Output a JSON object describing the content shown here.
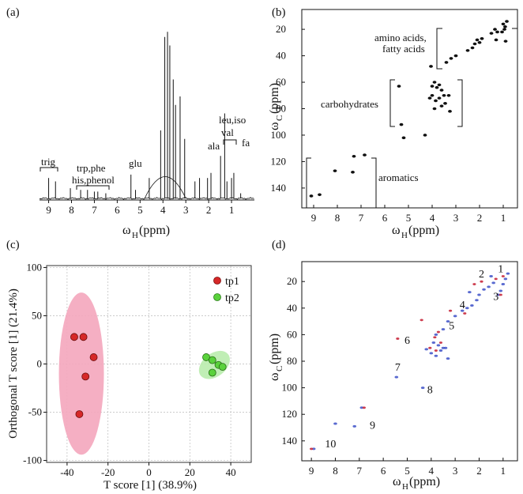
{
  "colors": {
    "spectrum": "#111111",
    "tp1_point": "#d62828",
    "tp1_ellipse": "#f4a6bd",
    "tp2_point": "#5ad23c",
    "tp2_ellipse": "#b9ecad",
    "grid": "#bbbbbb",
    "overlay_red": "#c8283c",
    "overlay_blue": "#3c50c8"
  },
  "chart_data": [
    {
      "panel_label": "(a)",
      "type": "line",
      "xlabel_main": "ω",
      "xlabel_sub": "H",
      "xlabel_unit": "(ppm)",
      "x_ticks": [
        9,
        8,
        7,
        6,
        5,
        4,
        3,
        2,
        1
      ],
      "xlim": [
        9.4,
        0.0
      ],
      "grid": false,
      "peaks": [
        {
          "x": 9.0,
          "h": 0.12
        },
        {
          "x": 8.7,
          "h": 0.1
        },
        {
          "x": 8.05,
          "h": 0.06
        },
        {
          "x": 7.6,
          "h": 0.05
        },
        {
          "x": 7.3,
          "h": 0.05
        },
        {
          "x": 7.0,
          "h": 0.04
        },
        {
          "x": 6.85,
          "h": 0.04
        },
        {
          "x": 6.5,
          "h": 0.03
        },
        {
          "x": 5.4,
          "h": 0.14
        },
        {
          "x": 5.2,
          "h": 0.05
        },
        {
          "x": 4.6,
          "h": 0.12
        },
        {
          "x": 4.1,
          "h": 0.4
        },
        {
          "x": 3.92,
          "h": 0.95
        },
        {
          "x": 3.8,
          "h": 0.98
        },
        {
          "x": 3.7,
          "h": 0.9
        },
        {
          "x": 3.55,
          "h": 0.7
        },
        {
          "x": 3.45,
          "h": 0.55
        },
        {
          "x": 3.25,
          "h": 0.6
        },
        {
          "x": 3.05,
          "h": 0.35
        },
        {
          "x": 2.6,
          "h": 0.1
        },
        {
          "x": 2.4,
          "h": 0.12
        },
        {
          "x": 2.05,
          "h": 0.12
        },
        {
          "x": 1.9,
          "h": 0.15
        },
        {
          "x": 1.48,
          "h": 0.25
        },
        {
          "x": 1.3,
          "h": 0.5
        },
        {
          "x": 1.2,
          "h": 0.1
        },
        {
          "x": 1.0,
          "h": 0.12
        },
        {
          "x": 0.9,
          "h": 0.15
        },
        {
          "x": 0.6,
          "h": 0.03
        }
      ],
      "annotations": [
        {
          "text": "trig",
          "x": 8.95
        },
        {
          "text": "trp,phe",
          "x": 7.3
        },
        {
          "text": "his,phenol",
          "x": 7.25
        },
        {
          "text": "glu",
          "x": 5.3
        },
        {
          "text": "ala",
          "x": 1.95
        },
        {
          "text": "leu,iso",
          "x": 1.1
        },
        {
          "text": "val",
          "x": 1.2
        },
        {
          "text": "fa",
          "x": 0.9
        }
      ]
    },
    {
      "panel_label": "(b)",
      "type": "scatter",
      "xlabel_main": "ω",
      "xlabel_sub": "H",
      "xlabel_unit": "(ppm)",
      "ylabel_main": "ω",
      "ylabel_sub": "C",
      "ylabel_unit": "(ppm)",
      "x_ticks": [
        9,
        8,
        7,
        6,
        5,
        4,
        3,
        2,
        1
      ],
      "y_ticks": [
        20,
        40,
        60,
        80,
        100,
        120,
        140
      ],
      "xlim": [
        9.5,
        0.4
      ],
      "ylim": [
        5,
        155
      ],
      "grid": false,
      "points": [
        [
          1.0,
          16
        ],
        [
          0.92,
          18
        ],
        [
          0.95,
          20
        ],
        [
          0.85,
          14
        ],
        [
          1.05,
          22
        ],
        [
          1.25,
          22
        ],
        [
          1.35,
          20
        ],
        [
          1.5,
          23
        ],
        [
          1.9,
          27
        ],
        [
          2.0,
          30
        ],
        [
          2.1,
          28
        ],
        [
          2.3,
          34
        ],
        [
          2.5,
          36
        ],
        [
          2.2,
          31
        ],
        [
          1.3,
          28
        ],
        [
          0.9,
          29
        ],
        [
          3.0,
          40
        ],
        [
          3.2,
          42
        ],
        [
          3.4,
          45
        ],
        [
          4.05,
          48
        ],
        [
          3.7,
          62
        ],
        [
          3.8,
          64
        ],
        [
          3.9,
          60
        ],
        [
          4.0,
          63
        ],
        [
          3.6,
          66
        ],
        [
          3.5,
          70
        ],
        [
          3.7,
          72
        ],
        [
          3.85,
          74
        ],
        [
          4.0,
          70
        ],
        [
          4.1,
          72
        ],
        [
          3.3,
          70
        ],
        [
          3.45,
          76
        ],
        [
          3.6,
          78
        ],
        [
          3.9,
          80
        ],
        [
          3.25,
          82
        ],
        [
          5.4,
          63
        ],
        [
          4.3,
          100
        ],
        [
          5.3,
          92
        ],
        [
          5.2,
          102
        ],
        [
          6.85,
          115
        ],
        [
          7.3,
          116
        ],
        [
          7.35,
          128
        ],
        [
          8.1,
          127
        ],
        [
          8.75,
          145
        ],
        [
          9.1,
          146
        ]
      ],
      "annotations": [
        {
          "text": "amino acids,"
        },
        {
          "text": "fatty acids"
        },
        {
          "text": "carbohydrates"
        },
        {
          "text": "aromatics"
        }
      ]
    },
    {
      "panel_label": "(c)",
      "type": "scatter",
      "xlabel": "T score [1] (38.9%)",
      "ylabel": "Orthogonal T score [1] (21.4%)",
      "x_ticks": [
        -40,
        -20,
        0,
        20,
        40
      ],
      "y_ticks": [
        100,
        50,
        0,
        -50,
        -100
      ],
      "xlim": [
        -50,
        50
      ],
      "ylim": [
        -102,
        102
      ],
      "grid": true,
      "legend_position": "top-right",
      "series": [
        {
          "name": "tp1",
          "points": [
            [
              -36.5,
              28
            ],
            [
              -32,
              28
            ],
            [
              -27,
              7
            ],
            [
              -31,
              -13
            ],
            [
              -34,
              -52
            ]
          ],
          "ellipse": {
            "cx": -33,
            "cy": -10,
            "rx": 11,
            "ry": 84
          }
        },
        {
          "name": "tp2",
          "points": [
            [
              28,
              7
            ],
            [
              31,
              4
            ],
            [
              34,
              -1
            ],
            [
              36,
              -3
            ],
            [
              31,
              -9
            ]
          ],
          "ellipse": {
            "cx": 32,
            "cy": -1,
            "rx": 8.5,
            "ry": 12,
            "angle": -38
          }
        }
      ]
    },
    {
      "panel_label": "(d)",
      "type": "scatter",
      "xlabel_main": "ω",
      "xlabel_sub": "H",
      "xlabel_unit": "(ppm)",
      "ylabel_main": "ω",
      "ylabel_sub": "C",
      "ylabel_unit": "(ppm)",
      "x_ticks": [
        9,
        8,
        7,
        6,
        5,
        4,
        3,
        2,
        1
      ],
      "y_ticks": [
        20,
        40,
        60,
        80,
        100,
        120,
        140
      ],
      "xlim": [
        9.4,
        0.4
      ],
      "ylim": [
        5,
        155
      ],
      "grid": false,
      "points_red": [
        [
          1.0,
          16
        ],
        [
          1.3,
          18
        ],
        [
          1.9,
          20
        ],
        [
          2.2,
          22
        ],
        [
          2.6,
          44
        ],
        [
          3.2,
          42
        ],
        [
          3.7,
          58
        ],
        [
          3.85,
          62
        ],
        [
          3.8,
          72
        ],
        [
          4.05,
          70
        ],
        [
          3.6,
          66
        ],
        [
          4.4,
          49
        ],
        [
          5.4,
          63
        ],
        [
          6.8,
          115
        ],
        [
          9.0,
          146
        ],
        [
          1.1,
          30
        ]
      ],
      "points_blue": [
        [
          0.8,
          14
        ],
        [
          0.9,
          18
        ],
        [
          1.0,
          22
        ],
        [
          1.1,
          27
        ],
        [
          1.2,
          30
        ],
        [
          1.4,
          21
        ],
        [
          1.6,
          24
        ],
        [
          1.8,
          26
        ],
        [
          2.0,
          30
        ],
        [
          2.1,
          34
        ],
        [
          2.3,
          38
        ],
        [
          2.5,
          40
        ],
        [
          2.7,
          42
        ],
        [
          3.0,
          46
        ],
        [
          3.3,
          50
        ],
        [
          3.5,
          56
        ],
        [
          3.8,
          60
        ],
        [
          3.9,
          66
        ],
        [
          3.7,
          68
        ],
        [
          3.5,
          70
        ],
        [
          3.6,
          72
        ],
        [
          4.0,
          74
        ],
        [
          3.8,
          76
        ],
        [
          3.4,
          70
        ],
        [
          4.2,
          71
        ],
        [
          3.3,
          78
        ],
        [
          5.45,
          92
        ],
        [
          4.35,
          100
        ],
        [
          6.9,
          115
        ],
        [
          8.0,
          127
        ],
        [
          7.2,
          129
        ],
        [
          8.9,
          146
        ],
        [
          2.4,
          28
        ],
        [
          1.5,
          16
        ]
      ],
      "labels": [
        {
          "text": "1",
          "x": 1.1,
          "y": 13
        },
        {
          "text": "2",
          "x": 1.9,
          "y": 17
        },
        {
          "text": "3",
          "x": 1.3,
          "y": 34
        },
        {
          "text": "4",
          "x": 2.7,
          "y": 40
        },
        {
          "text": "5",
          "x": 3.15,
          "y": 56
        },
        {
          "text": "6",
          "x": 5.0,
          "y": 67
        },
        {
          "text": "7",
          "x": 5.4,
          "y": 87
        },
        {
          "text": "8",
          "x": 4.05,
          "y": 104
        },
        {
          "text": "9",
          "x": 6.45,
          "y": 131
        },
        {
          "text": "10",
          "x": 8.2,
          "y": 145
        }
      ]
    }
  ]
}
